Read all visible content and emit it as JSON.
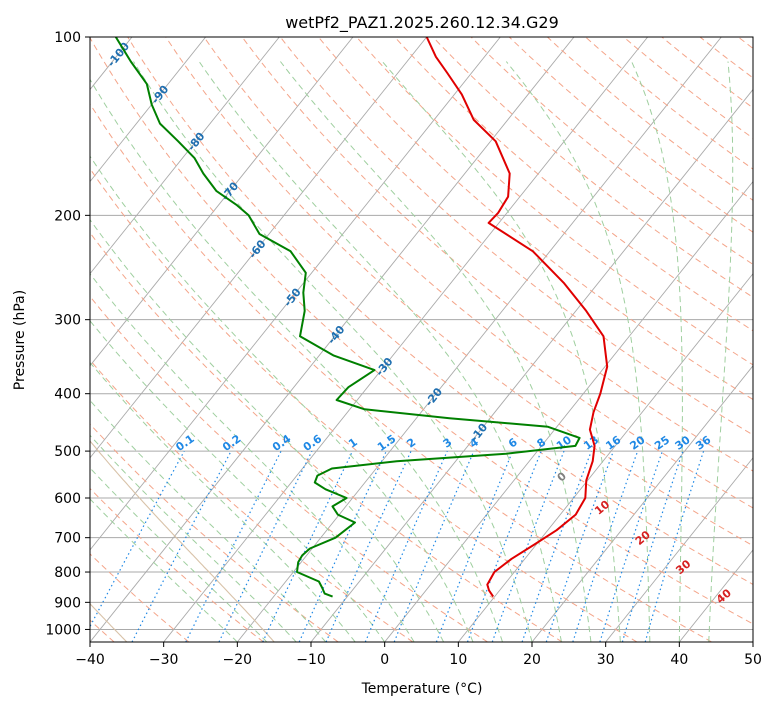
{
  "chart_data": {
    "type": "line",
    "title": "wetPf2_PAZ1.2025.260.12.34.G29",
    "xlabel": "Temperature (°C)",
    "ylabel": "Pressure (hPa)",
    "x_scale": "skew-T",
    "y_scale": "log",
    "xlim": [
      -40,
      50
    ],
    "ylim": [
      1050,
      100
    ],
    "x_ticks": [
      "−40",
      "−30",
      "−20",
      "−10",
      "0",
      "10",
      "20",
      "30",
      "40",
      "50"
    ],
    "y_ticks": [
      "100",
      "200",
      "300",
      "400",
      "500",
      "600",
      "700",
      "800",
      "900",
      "1000"
    ],
    "grid": true,
    "series": [
      {
        "role": "temperature",
        "color": "#e00000",
        "points": [
          [
            880,
            9.8
          ],
          [
            860,
            8.6
          ],
          [
            840,
            7.7
          ],
          [
            800,
            7.3
          ],
          [
            760,
            8.2
          ],
          [
            720,
            9.7
          ],
          [
            680,
            11.2
          ],
          [
            640,
            12.1
          ],
          [
            600,
            11.6
          ],
          [
            560,
            9.8
          ],
          [
            520,
            8.6
          ],
          [
            490,
            7.2
          ],
          [
            460,
            4.8
          ],
          [
            430,
            3.4
          ],
          [
            400,
            2.3
          ],
          [
            360,
            0.3
          ],
          [
            320,
            -3.5
          ],
          [
            290,
            -8.6
          ],
          [
            260,
            -14.7
          ],
          [
            230,
            -22.3
          ],
          [
            206,
            -31.4
          ],
          [
            198,
            -31.2
          ],
          [
            186,
            -31.6
          ],
          [
            170,
            -33.9
          ],
          [
            150,
            -39.3
          ],
          [
            138,
            -44.6
          ],
          [
            125,
            -49.0
          ],
          [
            115,
            -53.3
          ],
          [
            108,
            -56.6
          ],
          [
            100,
            -60.0
          ]
        ]
      },
      {
        "role": "dewpoint",
        "color": "#008000",
        "points": [
          [
            880,
            -12.0
          ],
          [
            870,
            -13.4
          ],
          [
            850,
            -14.4
          ],
          [
            830,
            -15.5
          ],
          [
            800,
            -19.5
          ],
          [
            770,
            -20.4
          ],
          [
            750,
            -20.6
          ],
          [
            730,
            -20.3
          ],
          [
            700,
            -18.0
          ],
          [
            660,
            -17.0
          ],
          [
            640,
            -20.2
          ],
          [
            620,
            -21.8
          ],
          [
            600,
            -20.8
          ],
          [
            580,
            -24.6
          ],
          [
            565,
            -26.8
          ],
          [
            550,
            -27.2
          ],
          [
            535,
            -26.0
          ],
          [
            520,
            -18.0
          ],
          [
            505,
            -4.0
          ],
          [
            490,
            4.6
          ],
          [
            475,
            4.3
          ],
          [
            455,
            -1.2
          ],
          [
            440,
            -15.5
          ],
          [
            425,
            -28.0
          ],
          [
            410,
            -32.8
          ],
          [
            390,
            -32.6
          ],
          [
            365,
            -30.9
          ],
          [
            345,
            -38.0
          ],
          [
            320,
            -44.7
          ],
          [
            290,
            -46.8
          ],
          [
            270,
            -49.0
          ],
          [
            250,
            -50.8
          ],
          [
            230,
            -55.2
          ],
          [
            215,
            -61.3
          ],
          [
            200,
            -64.8
          ],
          [
            192,
            -67.6
          ],
          [
            182,
            -71.8
          ],
          [
            170,
            -75.5
          ],
          [
            160,
            -78.4
          ],
          [
            150,
            -82.4
          ],
          [
            140,
            -86.8
          ],
          [
            130,
            -90.0
          ],
          [
            120,
            -92.9
          ],
          [
            110,
            -97.5
          ],
          [
            100,
            -102.2
          ]
        ]
      }
    ],
    "isotherm_labels": [
      "-100",
      "-90",
      "-80",
      "-70",
      "-60",
      "-50",
      "-40",
      "-30",
      "-20",
      "-10"
    ],
    "mixing_ratio_labels": [
      "0.1",
      "0.2",
      "0.4",
      "0.6",
      "1",
      "1.5",
      "2",
      "3",
      "4",
      "6",
      "8",
      "10",
      "13",
      "16",
      "20",
      "25",
      "30",
      "36"
    ],
    "dry_adiabat_labels": [
      "0",
      "10",
      "20",
      "30",
      "40"
    ],
    "colors": {
      "temperature": "#e00000",
      "dewpoint": "#008000",
      "isotherm": "#aaaaaa",
      "isobar": "#aaaaaa",
      "dry_adiabat": "#f4a58a",
      "moist_adiabat": "#9fcf9f",
      "mixing_ratio": "#1e88e5",
      "isotherm_label": "#1f6fb0",
      "adiabat_label": "#d62020",
      "zero_label": "#808080",
      "wet_bulb": "#d8c2a8"
    }
  }
}
